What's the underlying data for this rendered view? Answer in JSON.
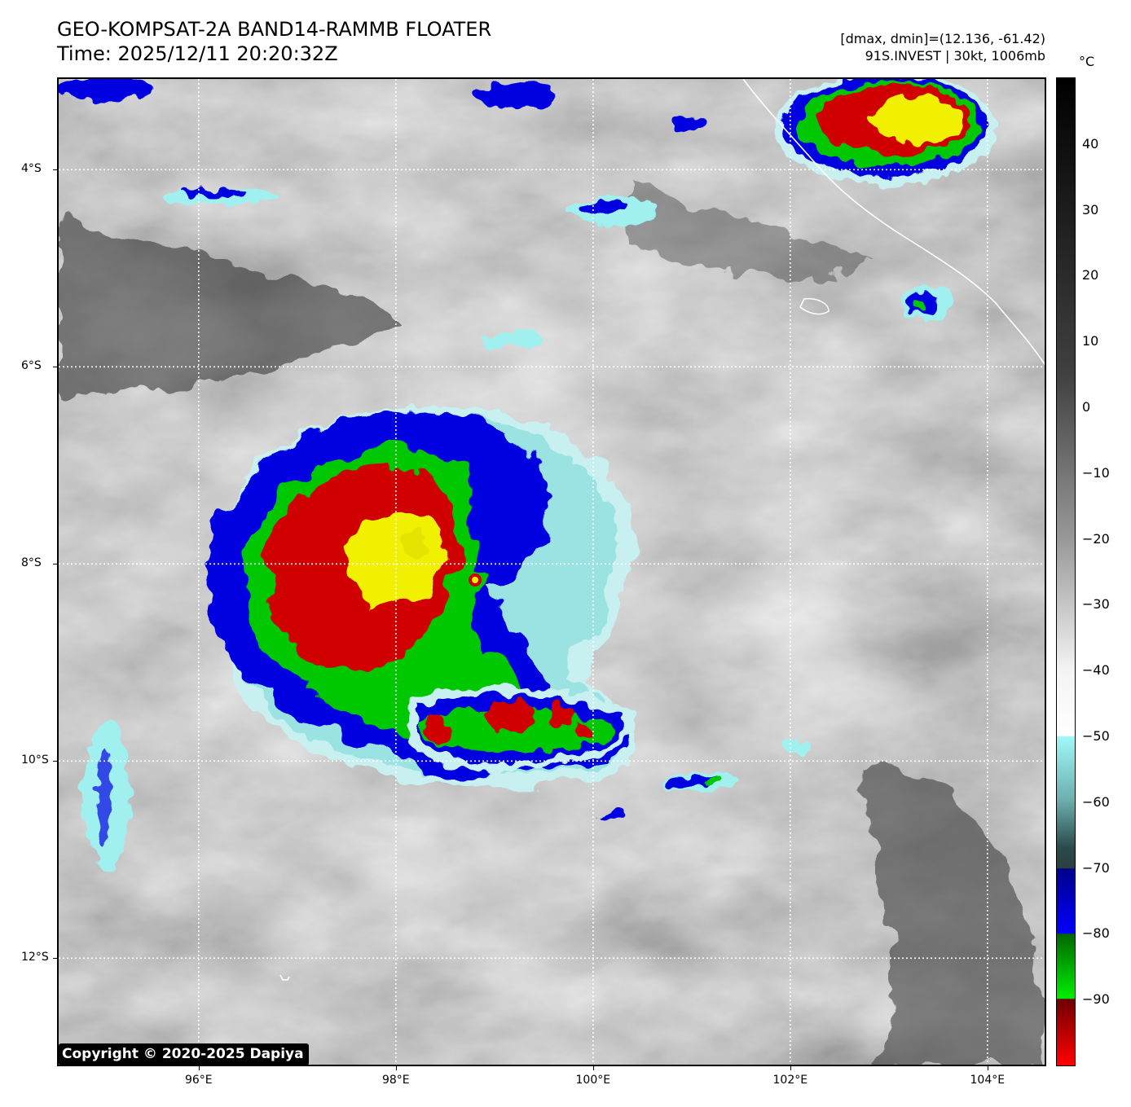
{
  "header": {
    "title": "GEO-KOMPSAT-2A BAND14-RAMMB FLOATER",
    "time": "Time: 2025/12/11 20:20:32Z",
    "dminmax": "[dmax, dmin]=(12.136, -61.42)",
    "storm": "91S.INVEST | 30kt, 1006mb"
  },
  "map": {
    "lat_labels": [
      {
        "text": "4°S",
        "lat": -4
      },
      {
        "text": "6°S",
        "lat": -6
      },
      {
        "text": "8°S",
        "lat": -8
      },
      {
        "text": "10°S",
        "lat": -10
      },
      {
        "text": "12°S",
        "lat": -12
      }
    ],
    "lon_labels": [
      {
        "text": "96°E",
        "lon": 96
      },
      {
        "text": "98°E",
        "lon": 98
      },
      {
        "text": "100°E",
        "lon": 100
      },
      {
        "text": "102°E",
        "lon": 102
      },
      {
        "text": "104°E",
        "lon": 104
      }
    ],
    "extent": {
      "lon_min": 94.58,
      "lon_max": 104.58,
      "lat_max": -3.08,
      "lat_min": -13.08
    },
    "gridlines": "dotted white",
    "storm_center": {
      "lat": -7.9,
      "lon": 97.9
    }
  },
  "colorbar": {
    "unit": "°C",
    "ticks": [
      {
        "text": "40",
        "value": 40
      },
      {
        "text": "30",
        "value": 30
      },
      {
        "text": "20",
        "value": 20
      },
      {
        "text": "10",
        "value": 10
      },
      {
        "text": "0",
        "value": 0
      },
      {
        "text": "−10",
        "value": -10
      },
      {
        "text": "−20",
        "value": -20
      },
      {
        "text": "−30",
        "value": -30
      },
      {
        "text": "−40",
        "value": -40
      },
      {
        "text": "−50",
        "value": -50
      },
      {
        "text": "−60",
        "value": -60
      },
      {
        "text": "−70",
        "value": -70
      },
      {
        "text": "−80",
        "value": -80
      },
      {
        "text": "−90",
        "value": -90
      }
    ],
    "range": [
      -100,
      50
    ],
    "colors": {
      "blue": "#0000e0",
      "green": "#00c800",
      "red": "#d00000",
      "yellow": "#f0f000",
      "cyan": "#a0f0f0"
    }
  },
  "copyright": "Copyright © 2020-2025 Dapiya"
}
